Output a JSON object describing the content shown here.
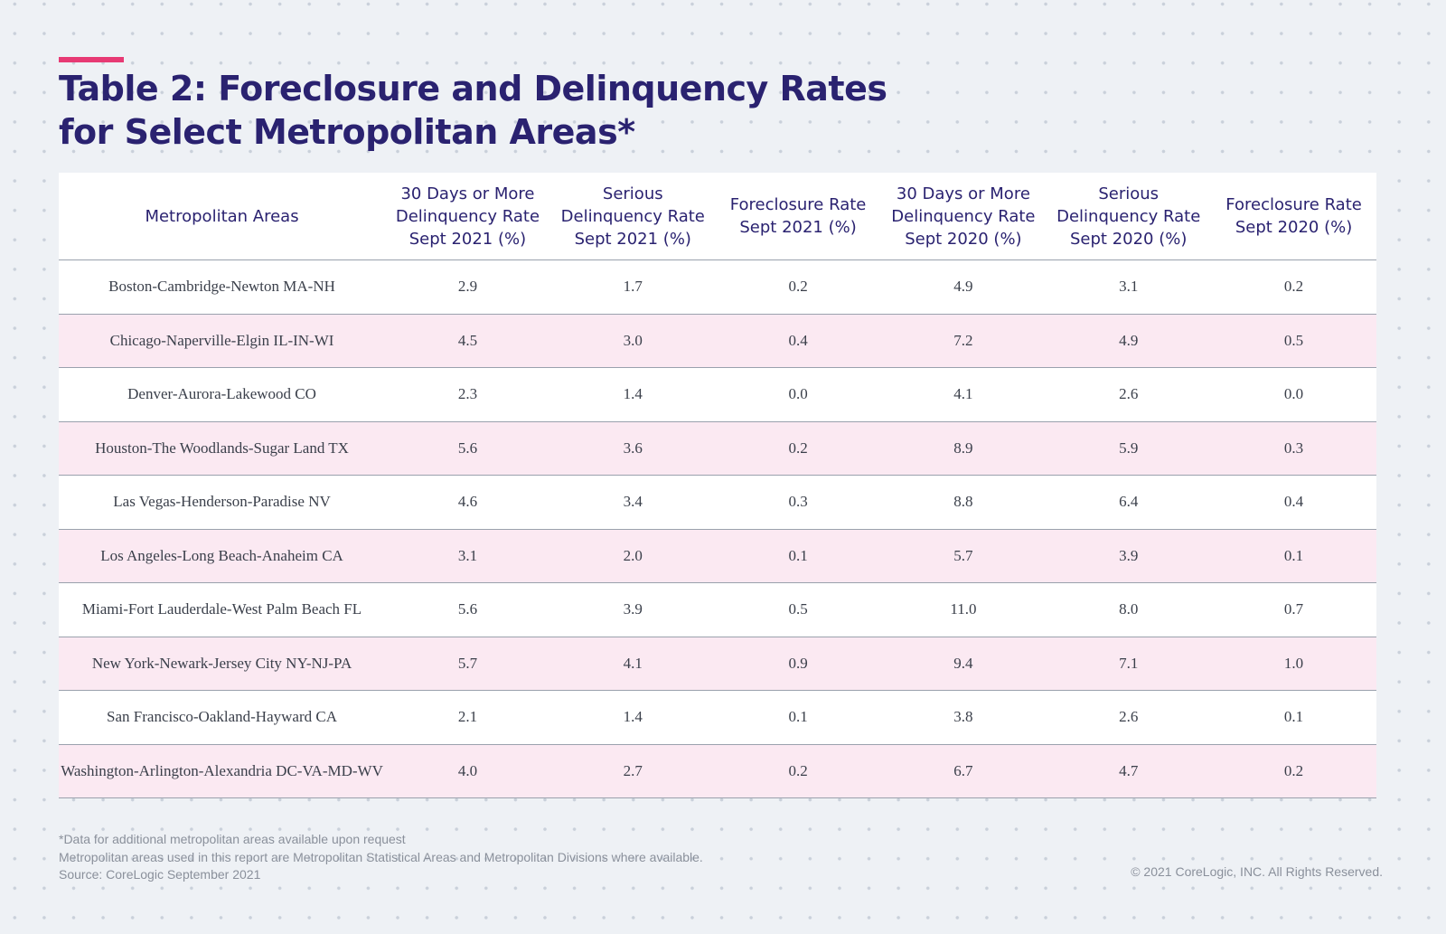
{
  "header": {
    "title_line1": "Table 2: Foreclosure and Delinquency Rates",
    "title_line2": "for Select Metropolitan Areas*",
    "accent_color": "#e73a74",
    "title_color": "#2a2270"
  },
  "table": {
    "columns": [
      [
        "Metropolitan Areas"
      ],
      [
        "30 Days or More",
        "Delinquency Rate",
        "Sept 2021 (%)"
      ],
      [
        "Serious",
        "Delinquency Rate",
        "Sept 2021 (%)"
      ],
      [
        "Foreclosure Rate",
        "Sept 2021 (%)"
      ],
      [
        "30 Days or More",
        "Delinquency Rate",
        "Sept 2020 (%)"
      ],
      [
        "Serious",
        "Delinquency Rate",
        "Sept 2020 (%)"
      ],
      [
        "Foreclosure Rate",
        "Sept 2020 (%)"
      ]
    ],
    "rows": [
      [
        "Boston-Cambridge-Newton MA-NH",
        "2.9",
        "1.7",
        "0.2",
        "4.9",
        "3.1",
        "0.2"
      ],
      [
        "Chicago-Naperville-Elgin IL-IN-WI",
        "4.5",
        "3.0",
        "0.4",
        "7.2",
        "4.9",
        "0.5"
      ],
      [
        "Denver-Aurora-Lakewood CO",
        "2.3",
        "1.4",
        "0.0",
        "4.1",
        "2.6",
        "0.0"
      ],
      [
        "Houston-The Woodlands-Sugar Land TX",
        "5.6",
        "3.6",
        "0.2",
        "8.9",
        "5.9",
        "0.3"
      ],
      [
        "Las Vegas-Henderson-Paradise NV",
        "4.6",
        "3.4",
        "0.3",
        "8.8",
        "6.4",
        "0.4"
      ],
      [
        "Los Angeles-Long Beach-Anaheim CA",
        "3.1",
        "2.0",
        "0.1",
        "5.7",
        "3.9",
        "0.1"
      ],
      [
        "Miami-Fort Lauderdale-West Palm Beach FL",
        "5.6",
        "3.9",
        "0.5",
        "11.0",
        "8.0",
        "0.7"
      ],
      [
        "New York-Newark-Jersey City NY-NJ-PA",
        "5.7",
        "4.1",
        "0.9",
        "9.4",
        "7.1",
        "1.0"
      ],
      [
        "San Francisco-Oakland-Hayward CA",
        "2.1",
        "1.4",
        "0.1",
        "3.8",
        "2.6",
        "0.1"
      ],
      [
        "Washington-Arlington-Alexandria DC-VA-MD-WV",
        "4.0",
        "2.7",
        "0.2",
        "6.7",
        "4.7",
        "0.2"
      ]
    ],
    "stripe_color": "#fbe9f2"
  },
  "footer": {
    "notes": [
      "*Data for additional metropolitan areas available upon request",
      "Metropolitan areas used in this report are Metropolitan Statistical Areas and Metropolitan Divisions where available.",
      "Source: CoreLogic September 2021"
    ],
    "copyright": "© 2021 CoreLogic, INC. All Rights Reserved."
  }
}
